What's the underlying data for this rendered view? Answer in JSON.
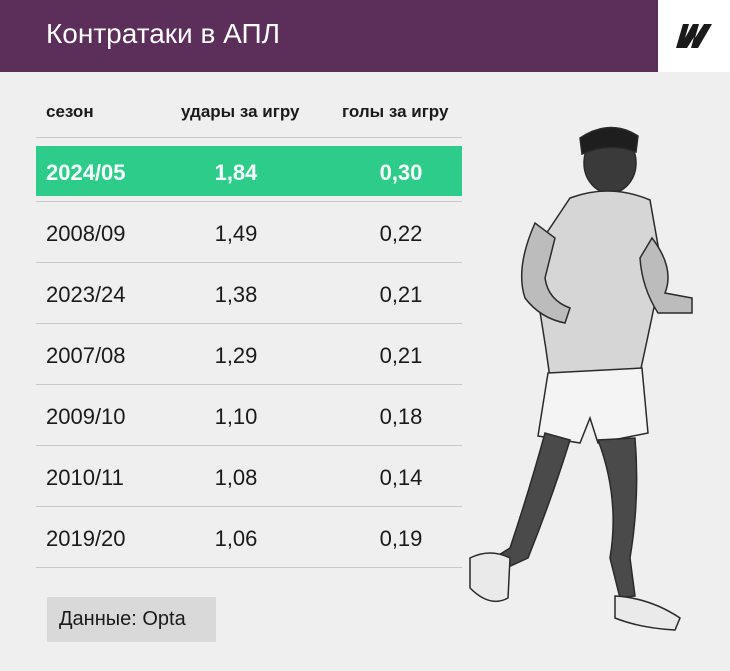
{
  "header": {
    "title": "Контратаки в АПЛ",
    "logo_icon": "w-logo-icon",
    "background": "#5b2f5a"
  },
  "chart_data": {
    "type": "table",
    "title": "Контратаки в АПЛ",
    "columns": [
      "сезон",
      "удары за игру",
      "голы за игру"
    ],
    "rows": [
      {
        "season": "2024/05",
        "shots": "1,84",
        "goals": "0,30",
        "highlight": true
      },
      {
        "season": "2008/09",
        "shots": "1,49",
        "goals": "0,22",
        "highlight": false
      },
      {
        "season": "2023/24",
        "shots": "1,38",
        "goals": "0,21",
        "highlight": false
      },
      {
        "season": "2007/08",
        "shots": "1,29",
        "goals": "0,21",
        "highlight": false
      },
      {
        "season": "2009/10",
        "shots": "1,10",
        "goals": "0,18",
        "highlight": false
      },
      {
        "season": "2010/11",
        "shots": "1,08",
        "goals": "0,14",
        "highlight": false
      },
      {
        "season": "2019/20",
        "shots": "1,06",
        "goals": "0,19",
        "highlight": false
      }
    ],
    "highlight_color": "#2ecc8a"
  },
  "source": "Данные: Opta"
}
